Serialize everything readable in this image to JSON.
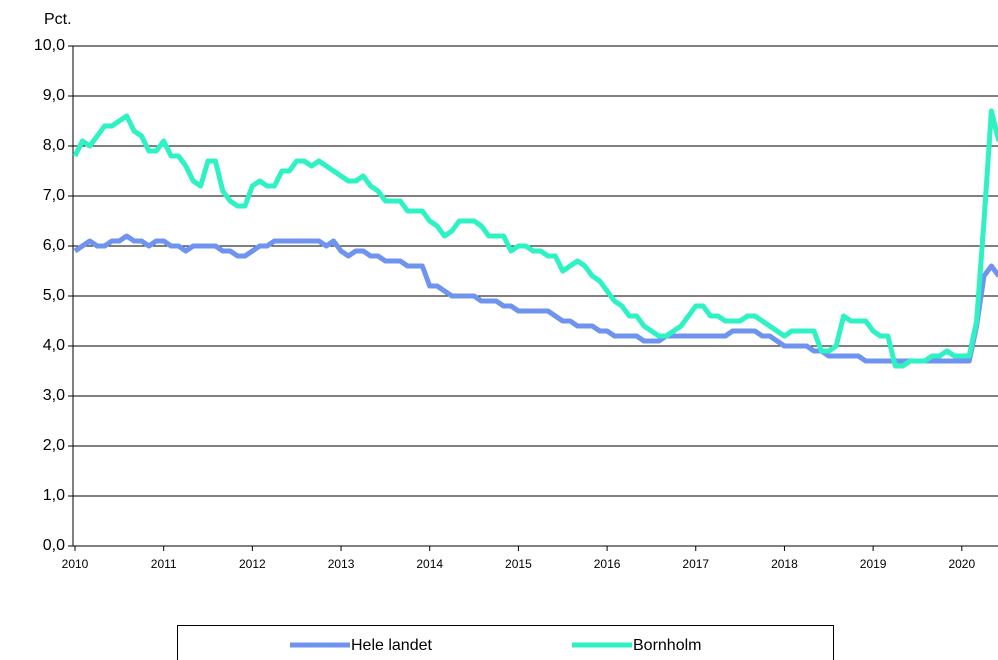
{
  "chart_data": {
    "type": "line",
    "y_label": "Pct.",
    "categories": [
      "2010",
      null,
      null,
      null,
      null,
      null,
      null,
      null,
      null,
      null,
      null,
      null,
      "2011",
      null,
      null,
      null,
      null,
      null,
      null,
      null,
      null,
      null,
      null,
      null,
      "2012",
      null,
      null,
      null,
      null,
      null,
      null,
      null,
      null,
      null,
      null,
      null,
      "2013",
      null,
      null,
      null,
      null,
      null,
      null,
      null,
      null,
      null,
      null,
      null,
      "2014",
      null,
      null,
      null,
      null,
      null,
      null,
      null,
      null,
      null,
      null,
      null,
      "2015",
      null,
      null,
      null,
      null,
      null,
      null,
      null,
      null,
      null,
      null,
      null,
      "2016",
      null,
      null,
      null,
      null,
      null,
      null,
      null,
      null,
      null,
      null,
      null,
      "2017",
      null,
      null,
      null,
      null,
      null,
      null,
      null,
      null,
      null,
      null,
      null,
      "2018",
      null,
      null,
      null,
      null,
      null,
      null,
      null,
      null,
      null,
      null,
      null,
      "2019",
      null,
      null,
      null,
      null,
      null,
      null,
      null,
      null,
      null,
      null,
      null,
      "2020",
      null,
      null,
      null,
      null,
      null
    ],
    "series": [
      {
        "name": "Hele landet",
        "color": "#6f94ef",
        "values": [
          5.9,
          6.0,
          6.1,
          6.0,
          6.0,
          6.1,
          6.1,
          6.2,
          6.1,
          6.1,
          6.0,
          6.1,
          6.1,
          6.0,
          6.0,
          5.9,
          6.0,
          6.0,
          6.0,
          6.0,
          5.9,
          5.9,
          5.8,
          5.8,
          5.9,
          6.0,
          6.0,
          6.1,
          6.1,
          6.1,
          6.1,
          6.1,
          6.1,
          6.1,
          6.0,
          6.1,
          5.9,
          5.8,
          5.9,
          5.9,
          5.8,
          5.8,
          5.7,
          5.7,
          5.7,
          5.6,
          5.6,
          5.6,
          5.2,
          5.2,
          5.1,
          5.0,
          5.0,
          5.0,
          5.0,
          4.9,
          4.9,
          4.9,
          4.8,
          4.8,
          4.7,
          4.7,
          4.7,
          4.7,
          4.7,
          4.6,
          4.5,
          4.5,
          4.4,
          4.4,
          4.4,
          4.3,
          4.3,
          4.2,
          4.2,
          4.2,
          4.2,
          4.1,
          4.1,
          4.1,
          4.2,
          4.2,
          4.2,
          4.2,
          4.2,
          4.2,
          4.2,
          4.2,
          4.2,
          4.3,
          4.3,
          4.3,
          4.3,
          4.2,
          4.2,
          4.1,
          4.0,
          4.0,
          4.0,
          4.0,
          3.9,
          3.9,
          3.8,
          3.8,
          3.8,
          3.8,
          3.8,
          3.7,
          3.7,
          3.7,
          3.7,
          3.7,
          3.7,
          3.7,
          3.7,
          3.7,
          3.7,
          3.7,
          3.7,
          3.7,
          3.7,
          3.7,
          4.4,
          5.4,
          5.6,
          5.4
        ]
      },
      {
        "name": "Bornholm",
        "color": "#2ef2c4",
        "values": [
          7.8,
          8.1,
          8.0,
          8.2,
          8.4,
          8.4,
          8.5,
          8.6,
          8.3,
          8.2,
          7.9,
          7.9,
          8.1,
          7.8,
          7.8,
          7.6,
          7.3,
          7.2,
          7.7,
          7.7,
          7.1,
          6.9,
          6.8,
          6.8,
          7.2,
          7.3,
          7.2,
          7.2,
          7.5,
          7.5,
          7.7,
          7.7,
          7.6,
          7.7,
          7.6,
          7.5,
          7.4,
          7.3,
          7.3,
          7.4,
          7.2,
          7.1,
          6.9,
          6.9,
          6.9,
          6.7,
          6.7,
          6.7,
          6.5,
          6.4,
          6.2,
          6.3,
          6.5,
          6.5,
          6.5,
          6.4,
          6.2,
          6.2,
          6.2,
          5.9,
          6.0,
          6.0,
          5.9,
          5.9,
          5.8,
          5.8,
          5.5,
          5.6,
          5.7,
          5.6,
          5.4,
          5.3,
          5.1,
          4.9,
          4.8,
          4.6,
          4.6,
          4.4,
          4.3,
          4.2,
          4.2,
          4.3,
          4.4,
          4.6,
          4.8,
          4.8,
          4.6,
          4.6,
          4.5,
          4.5,
          4.5,
          4.6,
          4.6,
          4.5,
          4.4,
          4.3,
          4.2,
          4.3,
          4.3,
          4.3,
          4.3,
          3.9,
          3.9,
          4.0,
          4.6,
          4.5,
          4.5,
          4.5,
          4.3,
          4.2,
          4.2,
          3.6,
          3.6,
          3.7,
          3.7,
          3.7,
          3.8,
          3.8,
          3.9,
          3.8,
          3.8,
          3.8,
          4.5,
          6.5,
          8.7,
          8.1
        ]
      }
    ],
    "ylim": [
      0,
      10
    ],
    "yticks": [
      {
        "value": 0,
        "label": "0,0"
      },
      {
        "value": 1,
        "label": "1,0"
      },
      {
        "value": 2,
        "label": "2,0"
      },
      {
        "value": 3,
        "label": "3,0"
      },
      {
        "value": 4,
        "label": "4,0"
      },
      {
        "value": 5,
        "label": "5,0"
      },
      {
        "value": 6,
        "label": "6,0"
      },
      {
        "value": 7,
        "label": "7,0"
      },
      {
        "value": 8,
        "label": "8,0"
      },
      {
        "value": 9,
        "label": "9,0"
      },
      {
        "value": 10,
        "label": "10,0"
      }
    ],
    "grid": true,
    "legend": "bottom"
  }
}
